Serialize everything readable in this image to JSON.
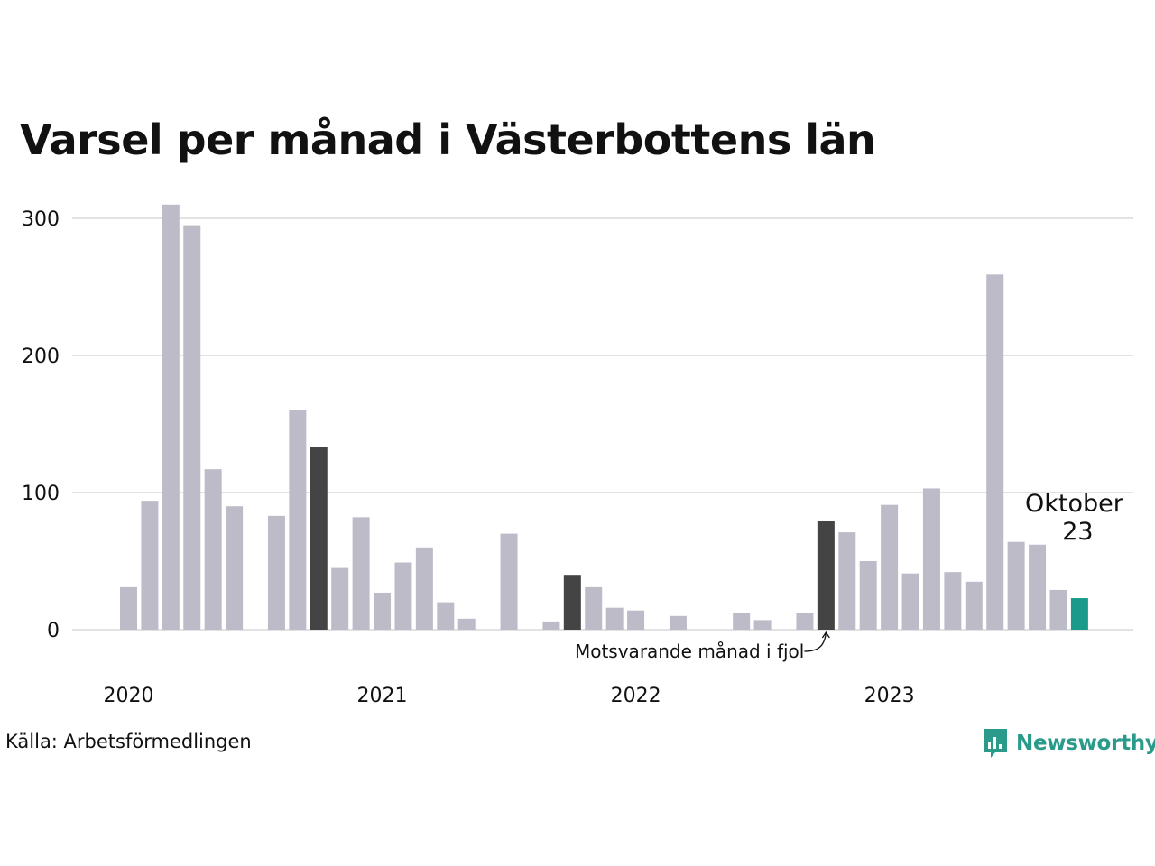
{
  "title": "Varsel per månad i Västerbottens län",
  "source": "Källa: Arbetsförmedlingen",
  "brand": {
    "name": "Newsworthy",
    "icon": "newsworthy-logo-icon",
    "color": "#2a9a8a"
  },
  "colors": {
    "default": "#bebbc9",
    "comparison": "#444444",
    "current": "#1a9a8a",
    "grid": "#e2e2e2"
  },
  "annotations": {
    "comparison_label": "Motsvarande månad i fjol",
    "current_label": [
      "Oktober",
      "23"
    ]
  },
  "chart_data": {
    "type": "bar",
    "title": "Varsel per månad i Västerbottens län",
    "xlabel": "",
    "ylabel": "",
    "ylim": [
      0,
      300
    ],
    "yticks": [
      0,
      100,
      200,
      300
    ],
    "xtick_labels": [
      "2020",
      "2021",
      "2022",
      "2023"
    ],
    "grid": true,
    "categories": [
      "2020-01",
      "2020-02",
      "2020-03",
      "2020-04",
      "2020-05",
      "2020-06",
      "2020-07",
      "2020-08",
      "2020-09",
      "2020-10",
      "2020-11",
      "2020-12",
      "2021-01",
      "2021-02",
      "2021-03",
      "2021-04",
      "2021-05",
      "2021-06",
      "2021-07",
      "2021-08",
      "2021-09",
      "2021-10",
      "2021-11",
      "2021-12",
      "2022-01",
      "2022-02",
      "2022-03",
      "2022-04",
      "2022-05",
      "2022-06",
      "2022-07",
      "2022-08",
      "2022-09",
      "2022-10",
      "2022-11",
      "2022-12",
      "2023-01",
      "2023-02",
      "2023-03",
      "2023-04",
      "2023-05",
      "2023-06",
      "2023-07",
      "2023-08",
      "2023-09",
      "2023-10"
    ],
    "values": [
      31,
      94,
      310,
      295,
      117,
      90,
      0,
      83,
      160,
      133,
      45,
      82,
      27,
      49,
      60,
      20,
      8,
      0,
      70,
      0,
      6,
      40,
      31,
      16,
      14,
      0,
      10,
      0,
      0,
      12,
      7,
      0,
      12,
      79,
      71,
      50,
      91,
      41,
      103,
      42,
      35,
      259,
      64,
      62,
      29,
      23
    ],
    "highlight": {
      "comparison": [
        "2020-10",
        "2021-10",
        "2022-10"
      ],
      "current": "2023-10"
    }
  }
}
